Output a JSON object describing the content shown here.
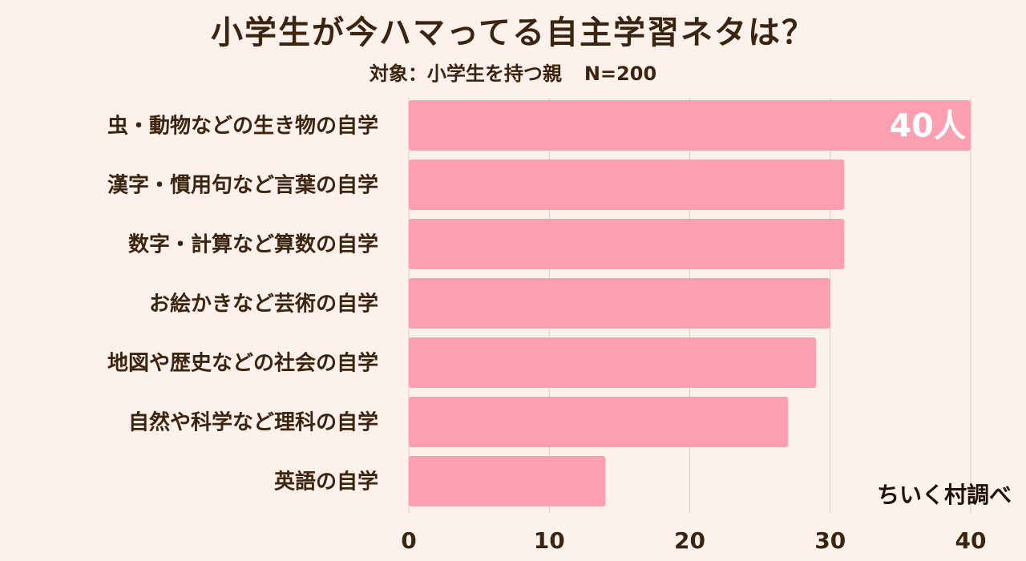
{
  "title": "小学生が今ハマってる自主学習ネタは？",
  "subtitle": "対象：小学生を持つ親",
  "sample": "N=200",
  "source": "ちいく村調べ",
  "colors": {
    "bar": "#fb9fb1",
    "grid": "#d9ccc6",
    "text": "#3b2510",
    "background": "#fdf1ec",
    "label_on_bar": "#ffffff"
  },
  "chart_data": {
    "type": "bar",
    "orientation": "horizontal",
    "categories": [
      "虫・動物などの生き物の自学",
      "漢字・慣用句など言葉の自学",
      "数字・計算など算数の自学",
      "お絵かきなど芸術の自学",
      "地図や歴史などの社会の自学",
      "自然や科学など理科の自学",
      "英語の自学"
    ],
    "values": [
      40,
      31,
      31,
      30,
      29,
      27,
      14
    ],
    "unit": "人",
    "data_labels": [
      "40人"
    ],
    "xlim": [
      0,
      40
    ],
    "xticks": [
      0,
      10,
      20,
      30,
      40
    ],
    "grid": true
  }
}
